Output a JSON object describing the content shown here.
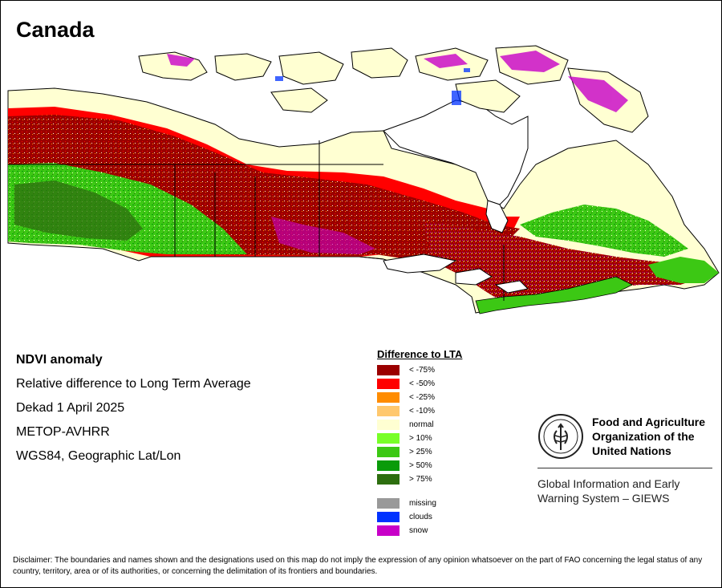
{
  "title": "Canada",
  "info": {
    "lines": [
      "NDVI anomaly",
      "Relative difference to Long Term Average",
      "Dekad 1 April 2025",
      "METOP-AVHRR",
      "WGS84, Geographic Lat/Lon"
    ]
  },
  "legend": {
    "title": "Difference to LTA",
    "classes": [
      {
        "label": "< -75%",
        "color": "#9b0000"
      },
      {
        "label": "< -50%",
        "color": "#ff0000"
      },
      {
        "label": "< -25%",
        "color": "#ff8c00"
      },
      {
        "label": "< -10%",
        "color": "#ffc86e"
      },
      {
        "label": "normal",
        "color": "#ffffd2"
      },
      {
        "label": "> 10%",
        "color": "#78ff28"
      },
      {
        "label": "> 25%",
        "color": "#3cc814"
      },
      {
        "label": "> 50%",
        "color": "#0a9b0a"
      },
      {
        "label": "> 75%",
        "color": "#2d6e0f"
      }
    ],
    "extra": [
      {
        "label": "missing",
        "color": "#999999"
      },
      {
        "label": "clouds",
        "color": "#0032ff"
      },
      {
        "label": "snow",
        "color": "#c800c8"
      }
    ]
  },
  "fao": {
    "logo_icon": "fao-emblem-icon",
    "org_lines": [
      "Food and Agriculture",
      "Organization of the",
      "United Nations"
    ],
    "giews_lines": [
      "Global Information and Early",
      "Warning System – GIEWS"
    ]
  },
  "disclaimer": "Disclaimer: The boundaries and names shown and the designations used on this map do not imply the expression of any opinion whatsoever on the part of FAO concerning the legal status of any country, territory, area or of its authorities, or concerning the delimitation of its frontiers and boundaries."
}
